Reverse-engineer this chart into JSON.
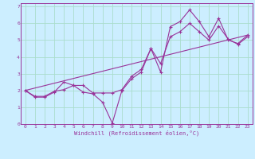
{
  "xlabel": "Windchill (Refroidissement éolien,°C)",
  "bg_color": "#cceeff",
  "line_color": "#993399",
  "grid_color": "#aaddcc",
  "xlim": [
    -0.5,
    23.5
  ],
  "ylim": [
    0,
    7.2
  ],
  "xticks": [
    0,
    1,
    2,
    3,
    4,
    5,
    6,
    7,
    8,
    9,
    10,
    11,
    12,
    13,
    14,
    15,
    16,
    17,
    18,
    19,
    20,
    21,
    22,
    23
  ],
  "yticks": [
    0,
    1,
    2,
    3,
    4,
    5,
    6,
    7
  ],
  "line1_x": [
    0,
    1,
    2,
    3,
    4,
    5,
    6,
    7,
    8,
    9,
    10,
    11,
    12,
    13,
    14,
    15,
    16,
    17,
    18,
    19,
    20,
    21,
    22,
    23
  ],
  "line1_y": [
    2.0,
    1.6,
    1.6,
    1.9,
    2.5,
    2.3,
    1.9,
    1.8,
    1.3,
    0.05,
    2.0,
    2.7,
    3.1,
    4.5,
    3.1,
    5.8,
    6.1,
    6.8,
    6.1,
    5.2,
    6.3,
    5.0,
    4.8,
    5.3
  ],
  "line2_x": [
    0,
    1,
    2,
    3,
    4,
    5,
    6,
    7,
    8,
    9,
    10,
    11,
    12,
    13,
    14,
    15,
    16,
    17,
    18,
    19,
    20,
    21,
    22,
    23
  ],
  "line2_y": [
    2.0,
    1.65,
    1.65,
    1.95,
    2.05,
    2.3,
    2.3,
    1.85,
    1.85,
    1.85,
    2.05,
    2.85,
    3.25,
    4.5,
    3.6,
    5.2,
    5.5,
    6.0,
    5.5,
    5.0,
    5.85,
    5.05,
    4.75,
    5.2
  ],
  "line3_x": [
    0,
    23
  ],
  "line3_y": [
    2.0,
    5.3
  ]
}
